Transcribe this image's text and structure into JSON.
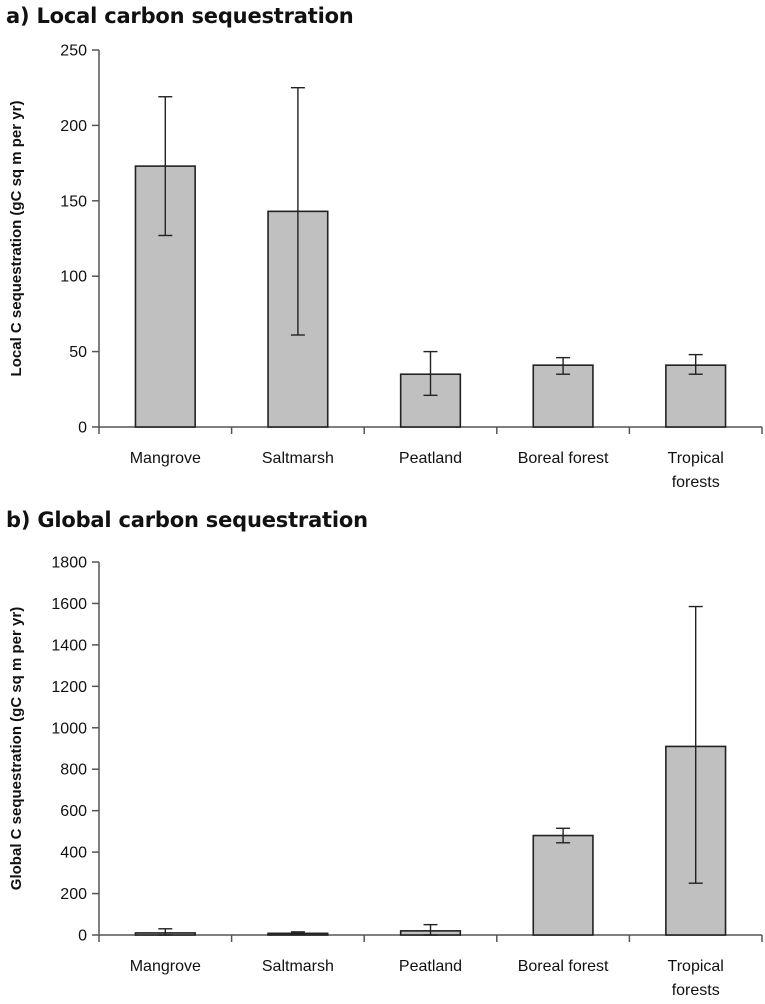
{
  "chart_data": [
    {
      "type": "bar",
      "title": "a) Local carbon sequestration",
      "ylabel": "Local C sequestration (gC sq m per yr)",
      "xlabel": "",
      "categories": [
        [
          "Mangrove"
        ],
        [
          "Saltmarsh"
        ],
        [
          "Peatland"
        ],
        [
          "Boreal forest"
        ],
        [
          "Tropical",
          "forests"
        ]
      ],
      "values": [
        173,
        143,
        35,
        41,
        41
      ],
      "error_low": [
        127,
        61,
        21,
        35,
        35
      ],
      "error_high": [
        219,
        225,
        50,
        46,
        48
      ],
      "ylim": [
        0,
        250
      ],
      "yticks": [
        0,
        50,
        100,
        150,
        200,
        250
      ],
      "grid": false,
      "bar_color": "#c0c0c0"
    },
    {
      "type": "bar",
      "title": "b) Global carbon sequestration",
      "ylabel": "Global C sequestration (gC sq m per yr)",
      "xlabel": "",
      "categories": [
        [
          "Mangrove"
        ],
        [
          "Saltmarsh"
        ],
        [
          "Peatland"
        ],
        [
          "Boreal forest"
        ],
        [
          "Tropical",
          "forests"
        ]
      ],
      "values": [
        10,
        8,
        20,
        480,
        910
      ],
      "error_low": [
        0,
        2,
        0,
        445,
        250
      ],
      "error_high": [
        30,
        15,
        50,
        515,
        1585
      ],
      "ylim": [
        0,
        1800
      ],
      "yticks": [
        0,
        200,
        400,
        600,
        800,
        1000,
        1200,
        1400,
        1600,
        1800
      ],
      "grid": false,
      "bar_color": "#c0c0c0"
    }
  ]
}
